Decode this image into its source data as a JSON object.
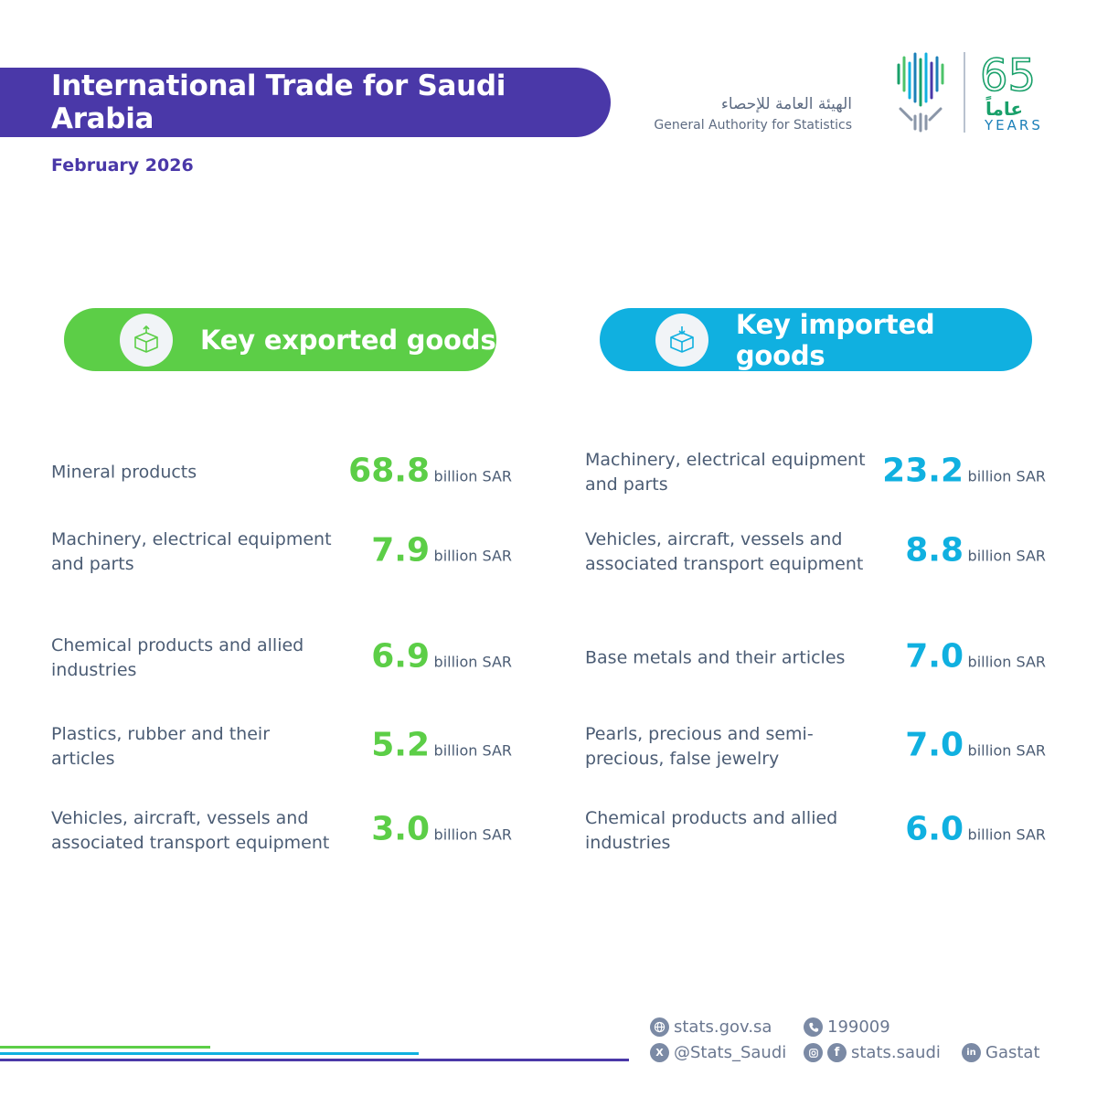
{
  "header": {
    "title": "International Trade for Saudi Arabia",
    "date": "February 2026"
  },
  "logo": {
    "arabic_name": "الهيئة العامة للإحصاء",
    "english_name": "General Authority for Statistics",
    "anniversary_number": "65",
    "anniversary_arabic": "عاماً",
    "anniversary_english": "YEARS"
  },
  "exports": {
    "label": "Key exported goods",
    "icon": "box-export-icon",
    "items": [
      {
        "name": "Mineral products",
        "value": "68.8",
        "unit": "billion SAR"
      },
      {
        "name": "Machinery, electrical equipment and parts",
        "value": "7.9",
        "unit": "billion SAR"
      },
      {
        "name": "Chemical products and allied industries",
        "value": "6.9",
        "unit": "billion SAR"
      },
      {
        "name": "Plastics, rubber and their articles",
        "value": "5.2",
        "unit": "billion SAR"
      },
      {
        "name": "Vehicles, aircraft, vessels and associated transport equipment",
        "value": "3.0",
        "unit": "billion SAR"
      }
    ]
  },
  "imports": {
    "label": "Key imported goods",
    "icon": "box-import-icon",
    "items": [
      {
        "name": "Machinery, electrical equipment and parts",
        "value": "23.2",
        "unit": "billion SAR"
      },
      {
        "name": "Vehicles, aircraft, vessels and associated transport equipment",
        "value": "8.8",
        "unit": "billion SAR"
      },
      {
        "name": "Base metals and their articles",
        "value": "7.0",
        "unit": "billion SAR"
      },
      {
        "name": "Pearls, precious and semi-precious, false jewelry",
        "value": "7.0",
        "unit": "billion SAR"
      },
      {
        "name": "Chemical products and allied industries",
        "value": "6.0",
        "unit": "billion SAR"
      }
    ]
  },
  "colors": {
    "purple": "#4a38a8",
    "green": "#5cce47",
    "blue": "#10b0e0",
    "text": "#4b5c74"
  },
  "footer": {
    "website": "stats.gov.sa",
    "phone": "199009",
    "twitter": "@Stats_Saudi",
    "instagram_facebook": "stats.saudi",
    "linkedin": "Gastat"
  }
}
